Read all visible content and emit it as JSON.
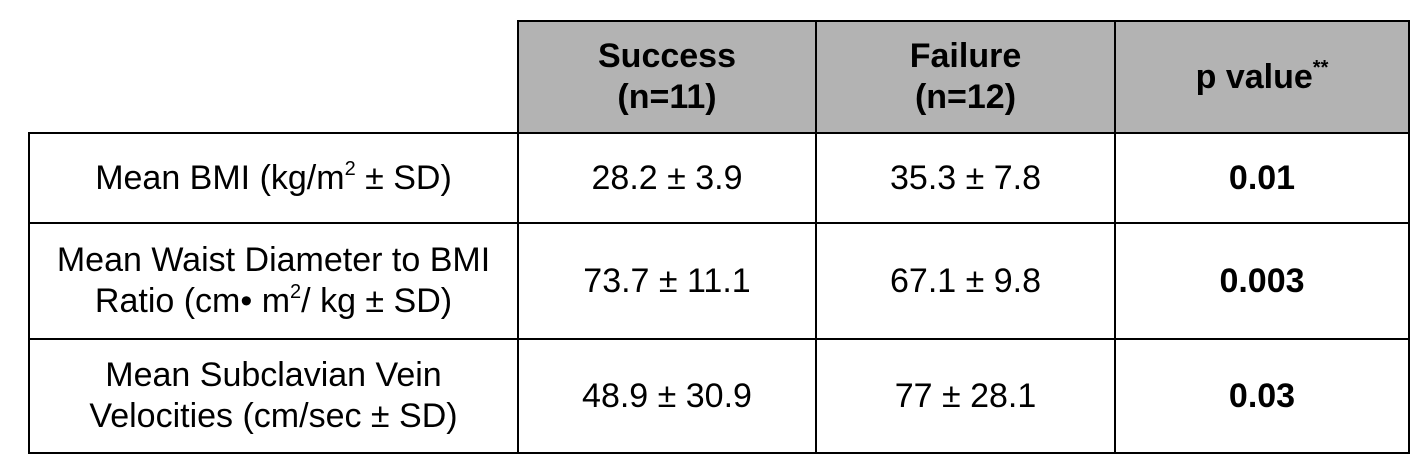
{
  "table": {
    "columns": [
      {
        "line1": "Success",
        "line2": "(n=11)"
      },
      {
        "line1": "Failure",
        "line2": "(n=12)"
      },
      {
        "label": "p value",
        "sup": "**"
      }
    ],
    "rows": [
      {
        "label_main": "Mean BMI (kg/m",
        "label_sup": "2",
        "label_tail": " ± SD)",
        "success": "28.2 ± 3.9",
        "failure": "35.3 ± 7.8",
        "p_value": "0.01"
      },
      {
        "label_line1": "Mean Waist Diameter to BMI",
        "label_line2_main": "Ratio (cm• m",
        "label_line2_sup": "2",
        "label_line2_tail": "/ kg ± SD)",
        "success": "73.7 ± 11.1",
        "failure": "67.1 ± 9.8",
        "p_value": "0.003"
      },
      {
        "label_line1": "Mean Subclavian Vein",
        "label_line2": "Velocities (cm/sec ± SD)",
        "success": "48.9 ± 30.9",
        "failure": "77 ± 28.1",
        "p_value": "0.03"
      }
    ]
  }
}
